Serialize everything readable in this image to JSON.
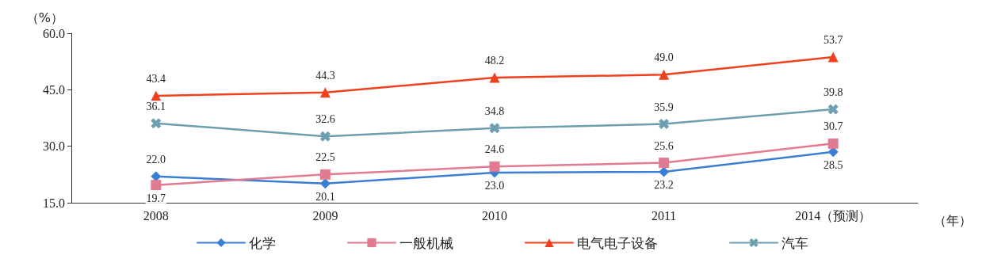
{
  "chart_data": {
    "type": "line",
    "ylabel": "（%）",
    "xlabel": "（年）",
    "categories": [
      "2008",
      "2009",
      "2010",
      "2011",
      "2014（预测）"
    ],
    "series": [
      {
        "name": "化学",
        "color": "#3b7fd4",
        "marker": "diamond",
        "values": [
          22.0,
          20.1,
          23.0,
          23.2,
          28.5
        ],
        "value_labels": [
          "22.0",
          "20.1",
          "23.0",
          "23.2",
          "28.5"
        ]
      },
      {
        "name": "一般机械",
        "color": "#e27a92",
        "marker": "square",
        "values": [
          19.7,
          22.5,
          24.6,
          25.6,
          30.7
        ],
        "value_labels": [
          "19.7",
          "22.5",
          "24.6",
          "25.6",
          "30.7"
        ]
      },
      {
        "name": "电气电子设备",
        "color": "#f0401e",
        "marker": "triangle",
        "values": [
          43.4,
          44.3,
          48.2,
          49.0,
          53.7
        ],
        "value_labels": [
          "43.4",
          "44.3",
          "48.2",
          "49.0",
          "53.7"
        ]
      },
      {
        "name": "汽车",
        "color": "#6d9fb0",
        "marker": "cross",
        "values": [
          36.1,
          32.6,
          34.8,
          35.9,
          39.8
        ],
        "value_labels": [
          "36.1",
          "32.6",
          "34.8",
          "35.9",
          "39.8"
        ]
      }
    ],
    "ylim": [
      15,
      60
    ],
    "yticks": [
      {
        "value": 15,
        "label": "15.0"
      },
      {
        "value": 30,
        "label": "30.0"
      },
      {
        "value": 45,
        "label": "45.0"
      },
      {
        "value": 60,
        "label": "60.0"
      }
    ],
    "grid": false,
    "legend": "bottom",
    "line_style": "solid"
  }
}
